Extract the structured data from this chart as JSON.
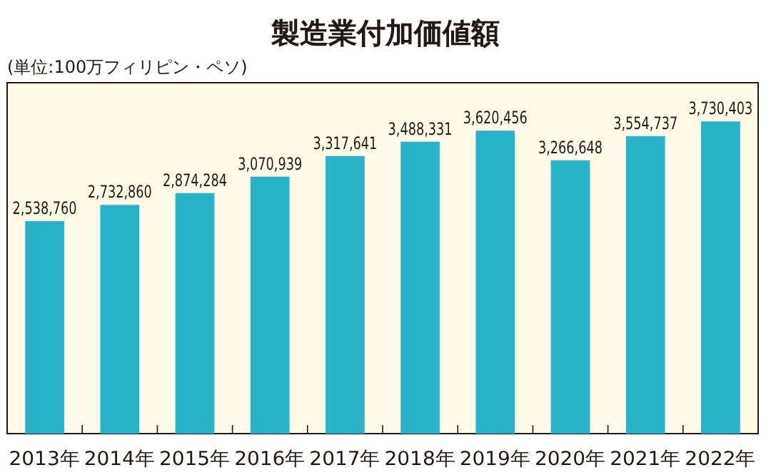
{
  "chart_data": {
    "type": "bar",
    "title": "製造業付加価値額",
    "subtitle": "(単位:100万フィリピン・ペソ)",
    "categories": [
      "2013年",
      "2014年",
      "2015年",
      "2016年",
      "2017年",
      "2018年",
      "2019年",
      "2020年",
      "2021年",
      "2022年"
    ],
    "values": [
      2538760,
      2732860,
      2874284,
      3070939,
      3317641,
      3488331,
      3620456,
      3266648,
      3554737,
      3730403
    ],
    "value_labels": [
      "2,538,760",
      "2,732,860",
      "2,874,284",
      "3,070,939",
      "3,317,641",
      "3,488,331",
      "3,620,456",
      "3,266,648",
      "3,554,737",
      "3,730,403"
    ],
    "color": "#29b3c8"
  }
}
